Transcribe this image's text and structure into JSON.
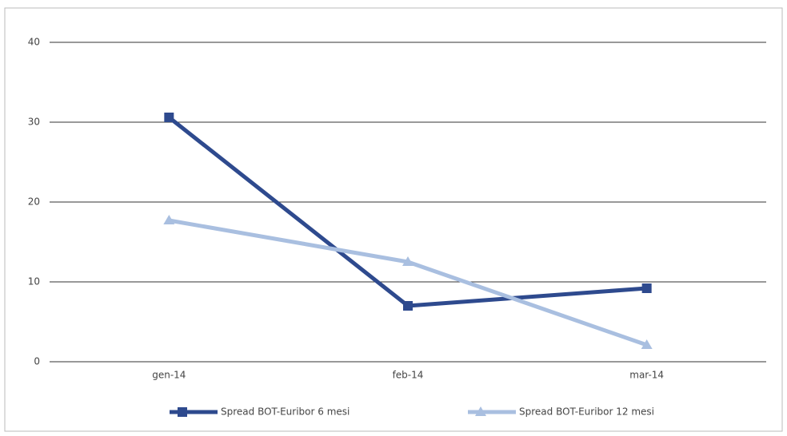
{
  "chart_data": {
    "type": "line",
    "categories": [
      "gen-14",
      "feb-14",
      "mar-14"
    ],
    "series": [
      {
        "name": "Spread BOT-Euribor 6 mesi",
        "color": "#2e4a8e",
        "marker": "square",
        "values": [
          30.6,
          7,
          9.2
        ]
      },
      {
        "name": "Spread BOT-Euribor 12 mesi",
        "color": "#a9bfe0",
        "marker": "triangle",
        "values": [
          17.7,
          12.5,
          2.1
        ]
      }
    ],
    "ylim": [
      0,
      40
    ],
    "yticks": [
      0,
      10,
      20,
      30,
      40
    ],
    "grid": true,
    "legend": "bottom"
  }
}
